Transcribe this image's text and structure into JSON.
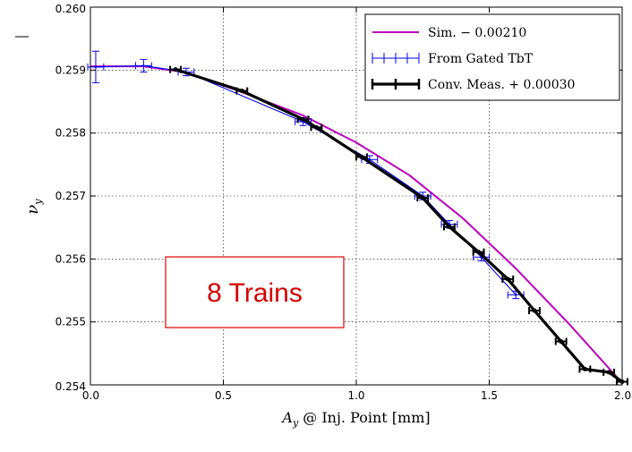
{
  "chart_data": {
    "type": "line",
    "xlabel": "A_y @ Inj. Point [mm]",
    "ylabel": "ν_y",
    "xlim": [
      0.0,
      2.0
    ],
    "ylim": [
      0.254,
      0.26
    ],
    "x_ticks": [
      "0.0",
      "0.5",
      "1.0",
      "1.5",
      "2.0"
    ],
    "y_ticks": [
      "0.254",
      "0.255",
      "0.256",
      "0.257",
      "0.258",
      "0.259",
      "0.260"
    ],
    "grid": true,
    "legend_position": "top-right",
    "annotation": "8 Trains",
    "series": [
      {
        "name": "Sim. − 0.00210",
        "color": "#bb00bb",
        "x": [
          0.0,
          0.2,
          0.35,
          0.55,
          0.8,
          1.0,
          1.2,
          1.4,
          1.6,
          1.8,
          2.0
        ],
        "y": [
          0.25906,
          0.25906,
          0.25897,
          0.25868,
          0.25828,
          0.25785,
          0.25733,
          0.25665,
          0.25585,
          0.25497,
          0.25403
        ]
      },
      {
        "name": "From Gated TbT",
        "color": "#0000ee",
        "x": [
          0.02,
          0.2,
          0.36,
          0.8,
          1.05,
          1.25,
          1.35,
          1.47,
          1.6
        ],
        "y": [
          0.25905,
          0.25907,
          0.25897,
          0.25818,
          0.25758,
          0.257,
          0.25655,
          0.25603,
          0.25543
        ],
        "xerr": [
          0.03,
          0.03,
          0.03,
          0.03,
          0.03,
          0.03,
          0.03,
          0.03,
          0.03
        ],
        "yerr": [
          0.00025,
          0.0001,
          6e-05,
          6e-05,
          6e-05,
          6e-05,
          6e-05,
          6e-05,
          6e-05
        ]
      },
      {
        "name": "Conv. Meas. + 0.00030",
        "color": "#000000",
        "x": [
          0.32,
          0.57,
          0.8,
          0.85,
          1.02,
          1.25,
          1.35,
          1.46,
          1.57,
          1.67,
          1.77,
          1.86,
          1.95,
          2.0
        ],
        "y": [
          0.25901,
          0.25867,
          0.25822,
          0.25809,
          0.25762,
          0.25697,
          0.25651,
          0.25611,
          0.25568,
          0.25518,
          0.25469,
          0.25425,
          0.2542,
          0.25405
        ],
        "xerr": [
          0.02,
          0.02,
          0.02,
          0.02,
          0.02,
          0.02,
          0.02,
          0.02,
          0.02,
          0.02,
          0.02,
          0.02,
          0.02,
          0.02
        ]
      }
    ]
  }
}
